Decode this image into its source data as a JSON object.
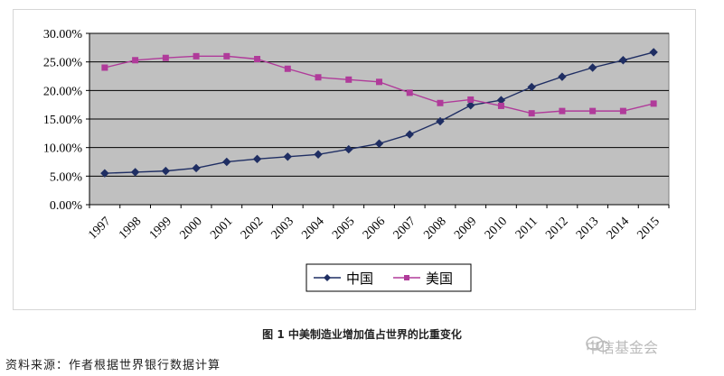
{
  "chart_data": {
    "type": "line",
    "x": [
      "1997",
      "1998",
      "1999",
      "2000",
      "2001",
      "2002",
      "2003",
      "2004",
      "2005",
      "2006",
      "2007",
      "2008",
      "2009",
      "2010",
      "2011",
      "2012",
      "2013",
      "2014",
      "2015"
    ],
    "series": [
      {
        "name": "中国",
        "color": "#1f2e63",
        "marker": "diamond",
        "values": [
          5.5,
          5.7,
          5.9,
          6.4,
          7.5,
          8.0,
          8.4,
          8.8,
          9.7,
          10.7,
          12.3,
          14.6,
          17.4,
          18.3,
          20.6,
          22.4,
          24.0,
          25.3,
          26.7
        ]
      },
      {
        "name": "美国",
        "color": "#b03b9a",
        "marker": "square",
        "values": [
          24.0,
          25.3,
          25.7,
          26.0,
          26.0,
          25.5,
          23.8,
          22.3,
          21.9,
          21.5,
          19.6,
          17.8,
          18.4,
          17.3,
          16.0,
          16.4,
          16.4,
          16.4,
          17.7
        ]
      }
    ],
    "y_ticks": [
      "0.00%",
      "5.00%",
      "10.00%",
      "15.00%",
      "20.00%",
      "25.00%",
      "30.00%"
    ],
    "ylim": [
      0,
      30
    ],
    "grid": true,
    "plot_background": "#c0c0c0",
    "legend_position": "bottom-center"
  },
  "caption": "图 1  中美制造业增加值占世界的比重变化",
  "source": "资料来源：作者根据世界银行数据计算",
  "watermark": "中信基金会"
}
